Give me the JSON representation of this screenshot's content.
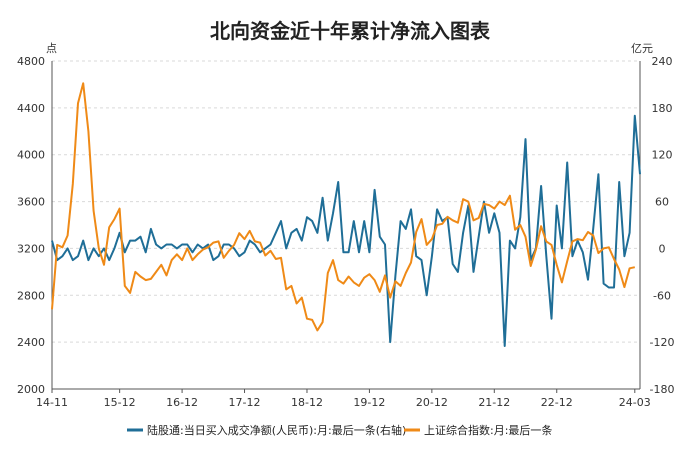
{
  "chart_data": {
    "type": "line",
    "title": "北向资金近十年累计净流入图表",
    "y_left_unit": "点",
    "y_right_unit": "亿元",
    "y_left_lim": [
      2000,
      4800
    ],
    "y_left_ticks": [
      2000,
      2400,
      2800,
      3200,
      3600,
      4000,
      4400,
      4800
    ],
    "y_right_lim": [
      -180,
      240
    ],
    "y_right_ticks": [
      -180,
      -120,
      -60,
      0,
      60,
      120,
      180,
      240
    ],
    "x_tick_labels": [
      "14-11",
      "15-12",
      "16-12",
      "17-12",
      "18-12",
      "19-12",
      "20-12",
      "21-12",
      "22-12",
      "24-03"
    ],
    "x_tick_index": [
      0,
      13,
      25,
      37,
      49,
      61,
      73,
      85,
      97,
      112
    ],
    "grid": true,
    "legend_position": "bottom",
    "series": [
      {
        "name": "陆股通:当日买入成交净额(人民币):月:最后一条(右轴)",
        "axis": "right",
        "color": "#1f6e97",
        "values": [
          10,
          -15,
          -10,
          0,
          -15,
          -10,
          10,
          -15,
          0,
          -10,
          0,
          -15,
          0,
          20,
          -5,
          10,
          10,
          15,
          -5,
          25,
          5,
          0,
          5,
          5,
          0,
          5,
          5,
          -5,
          5,
          0,
          5,
          -15,
          -10,
          5,
          5,
          0,
          -10,
          -5,
          10,
          5,
          -5,
          0,
          5,
          20,
          35,
          0,
          20,
          25,
          10,
          40,
          35,
          20,
          65,
          10,
          45,
          85,
          -5,
          -5,
          35,
          -5,
          35,
          -5,
          75,
          15,
          5,
          -120,
          -35,
          35,
          25,
          50,
          -10,
          -15,
          -60,
          -10,
          50,
          35,
          40,
          -20,
          -30,
          20,
          55,
          -30,
          15,
          60,
          20,
          45,
          20,
          -125,
          10,
          0,
          40,
          140,
          -15,
          0,
          80,
          -10,
          -90,
          55,
          0,
          110,
          -10,
          10,
          -5,
          -40,
          25,
          95,
          -45,
          -50,
          -50,
          85,
          -10,
          20,
          170,
          95
        ]
      },
      {
        "name": "上证综合指数:月:最后一条",
        "axis": "left",
        "color": "#ef8a17",
        "values": [
          2680,
          3230,
          3210,
          3310,
          3750,
          4440,
          4610,
          4200,
          3520,
          3200,
          3060,
          3380,
          3450,
          3540,
          2880,
          2820,
          3000,
          2960,
          2930,
          2940,
          3000,
          3060,
          2970,
          3100,
          3150,
          3100,
          3200,
          3100,
          3150,
          3190,
          3210,
          3250,
          3260,
          3120,
          3180,
          3230,
          3330,
          3280,
          3350,
          3260,
          3250,
          3140,
          3180,
          3110,
          3120,
          2850,
          2880,
          2730,
          2780,
          2600,
          2590,
          2500,
          2570,
          2990,
          3100,
          2930,
          2900,
          2960,
          2910,
          2880,
          2950,
          2980,
          2930,
          2830,
          2970,
          2780,
          2920,
          2880,
          2990,
          3080,
          3340,
          3450,
          3230,
          3280,
          3400,
          3410,
          3470,
          3440,
          3420,
          3620,
          3600,
          3440,
          3460,
          3580,
          3570,
          3540,
          3600,
          3570,
          3650,
          3360,
          3400,
          3300,
          3050,
          3190,
          3390,
          3260,
          3230,
          3060,
          2910,
          3090,
          3260,
          3280,
          3270,
          3340,
          3310,
          3160,
          3200,
          3210,
          3110,
          3020,
          2870,
          3030,
          3040
        ]
      }
    ]
  }
}
